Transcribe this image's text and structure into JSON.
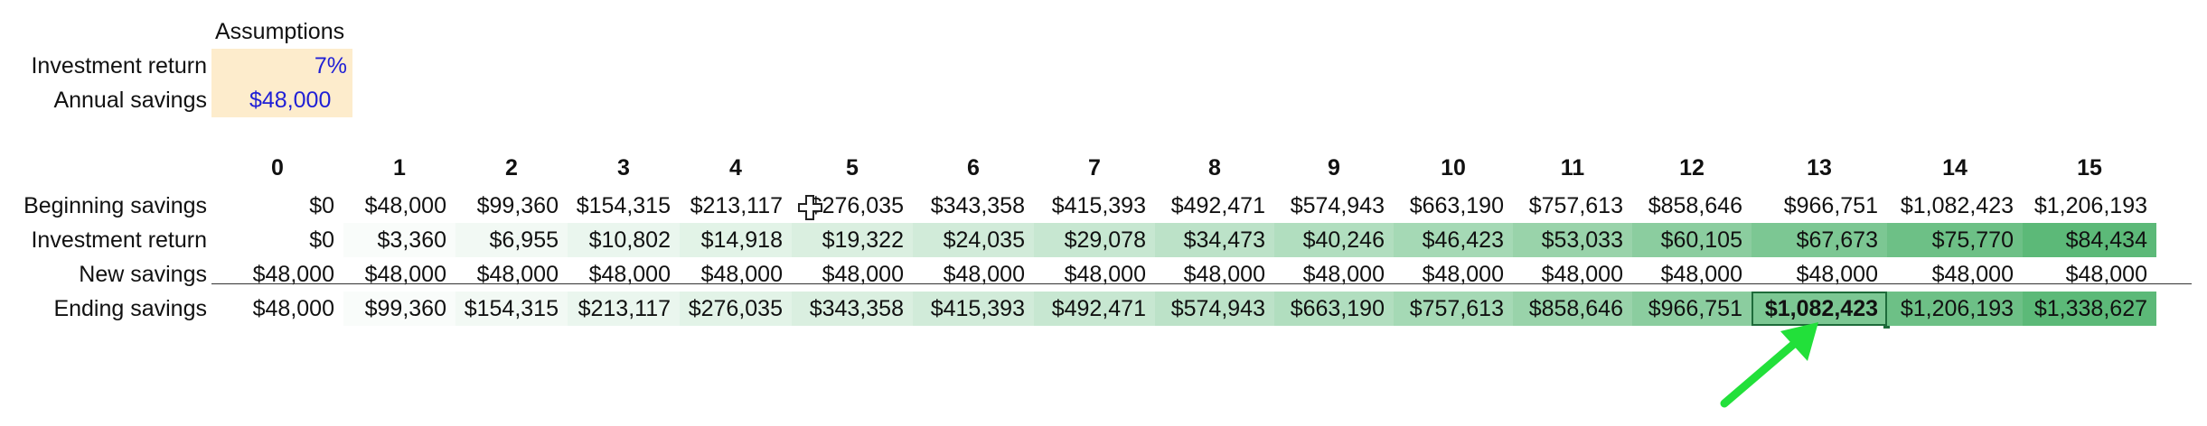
{
  "assumptions": {
    "title": "Assumptions",
    "rows": [
      {
        "label": "Investment return",
        "value": "7%"
      },
      {
        "label": "Annual savings",
        "value": "$48,000"
      }
    ]
  },
  "table": {
    "headers": [
      "0",
      "1",
      "2",
      "3",
      "4",
      "5",
      "6",
      "7",
      "8",
      "9",
      "10",
      "11",
      "12",
      "13",
      "14",
      "15"
    ],
    "rows": [
      {
        "label": "Beginning savings",
        "values": [
          "$0",
          "$48,000",
          "$99,360",
          "$154,315",
          "$213,117",
          "$276,035",
          "$343,358",
          "$415,393",
          "$492,471",
          "$574,943",
          "$663,190",
          "$757,613",
          "$858,646",
          "$966,751",
          "$1,082,423",
          "$1,206,193"
        ]
      },
      {
        "label": "Investment return",
        "values": [
          "$0",
          "$3,360",
          "$6,955",
          "$10,802",
          "$14,918",
          "$19,322",
          "$24,035",
          "$29,078",
          "$34,473",
          "$40,246",
          "$46,423",
          "$53,033",
          "$60,105",
          "$67,673",
          "$75,770",
          "$84,434"
        ]
      },
      {
        "label": "New savings",
        "values": [
          "$48,000",
          "$48,000",
          "$48,000",
          "$48,000",
          "$48,000",
          "$48,000",
          "$48,000",
          "$48,000",
          "$48,000",
          "$48,000",
          "$48,000",
          "$48,000",
          "$48,000",
          "$48,000",
          "$48,000",
          "$48,000"
        ]
      },
      {
        "label": "Ending savings",
        "values": [
          "$48,000",
          "$99,360",
          "$154,315",
          "$213,117",
          "$276,035",
          "$343,358",
          "$415,393",
          "$492,471",
          "$574,943",
          "$663,190",
          "$757,613",
          "$858,646",
          "$966,751",
          "$1,082,423",
          "$1,206,193",
          "$1,338,627"
        ]
      }
    ]
  },
  "selected_cell": {
    "row": 3,
    "col": 13
  },
  "colors": {
    "assumption_fill": "#fdeccc",
    "input_text": "#1f1fd6",
    "scale_low": "#ffffff",
    "scale_high": "#5cb978",
    "selection": "#1e6b3a",
    "annotation_arrow": "#22e03a"
  },
  "icons": {
    "cursor": "cell-cursor-icon",
    "arrow": "annotation-arrow-icon"
  }
}
